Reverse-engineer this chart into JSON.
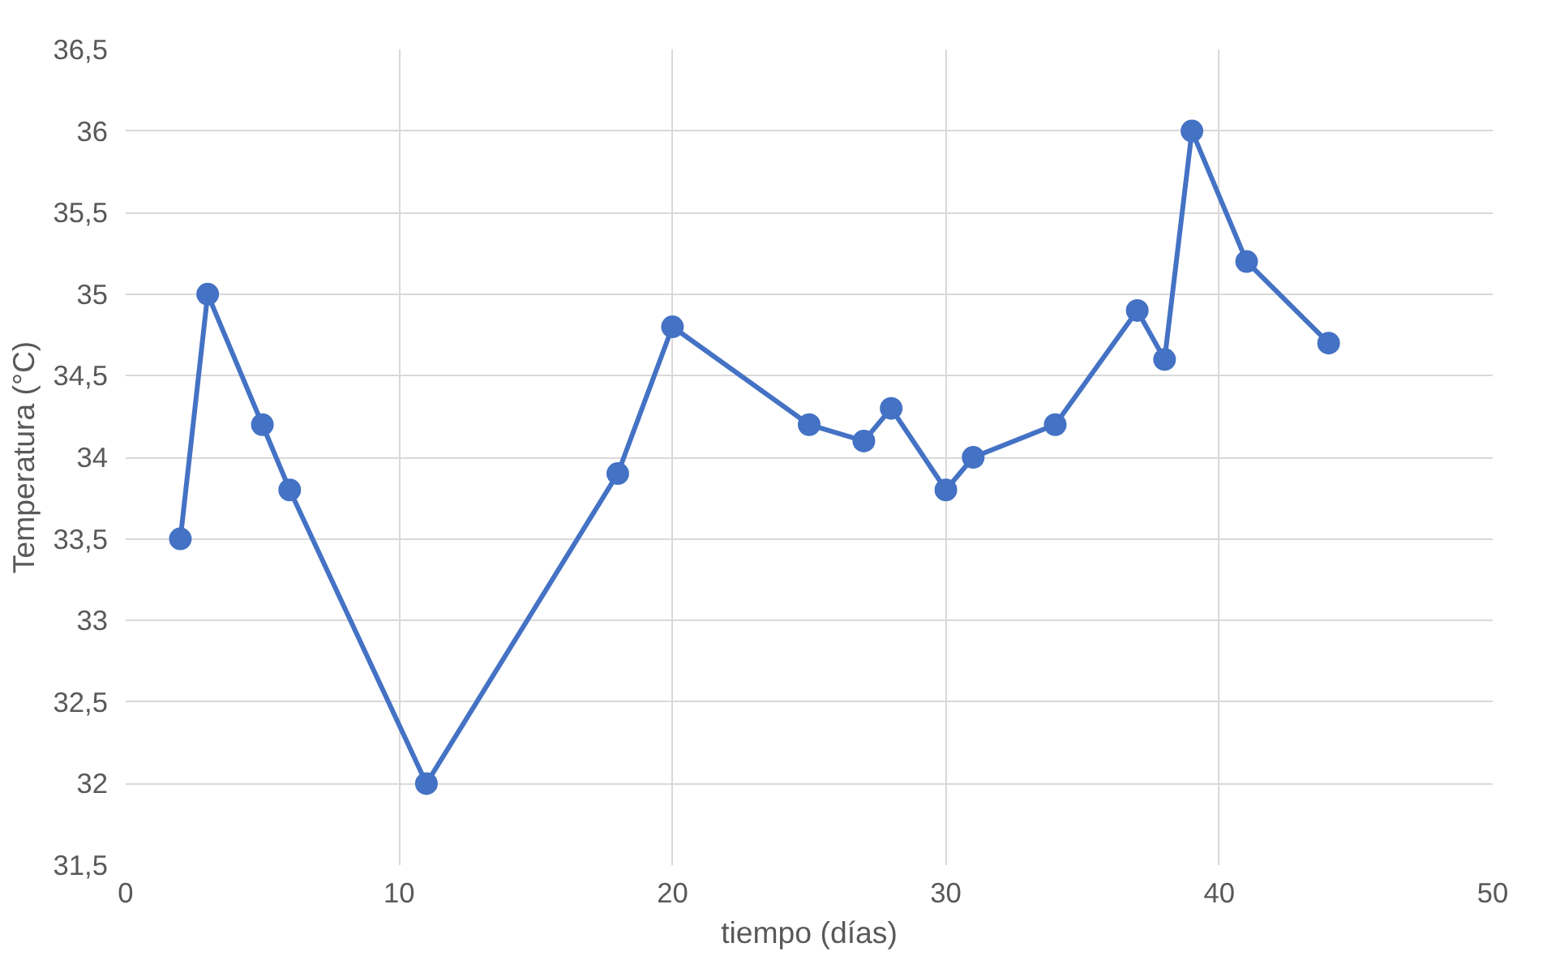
{
  "chart_data": {
    "type": "line",
    "xlabel": "tiempo (días)",
    "ylabel": "Temperatura (°C)",
    "x": [
      2,
      3,
      5,
      6,
      11,
      18,
      20,
      25,
      27,
      28,
      30,
      31,
      34,
      37,
      38,
      39,
      41,
      44
    ],
    "series": [
      {
        "color": "#4472c4",
        "values": [
          33.5,
          35,
          34.2,
          33.8,
          32,
          33.9,
          34.8,
          34.2,
          34.1,
          34.3,
          33.8,
          34,
          34.2,
          34.9,
          34.6,
          36,
          35.2,
          34.7
        ]
      }
    ],
    "xlim": [
      0,
      50
    ],
    "xticks": [
      0,
      10,
      20,
      30,
      40,
      50
    ],
    "ylim": [
      31.5,
      36.5
    ],
    "yticks": [
      {
        "value": 31.5,
        "label": "31,5"
      },
      32,
      {
        "value": 32.5,
        "label": "32,5"
      },
      33,
      {
        "value": 33.5,
        "label": "33,5"
      },
      34,
      {
        "value": 34.5,
        "label": "34,5"
      },
      35,
      {
        "value": 35.5,
        "label": "35,5"
      },
      36,
      {
        "value": 36.5,
        "label": "36,5"
      }
    ],
    "grid": true,
    "marker": "circle",
    "line_style": "solid"
  }
}
